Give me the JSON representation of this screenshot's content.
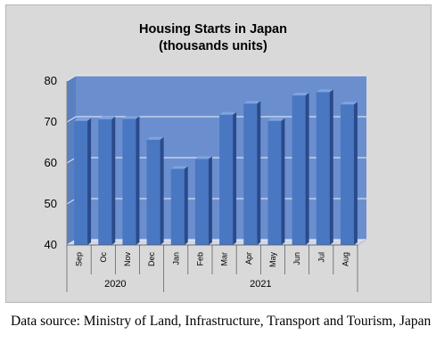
{
  "chart_data": {
    "type": "bar",
    "title": "Housing Starts in Japan",
    "subtitle": "(thousands units)",
    "categories": [
      "Sep",
      "Oc",
      "Nov",
      "Dec",
      "Jan",
      "Feb",
      "Mar",
      "Apr",
      "May",
      "Jun",
      "Jul",
      "Aug"
    ],
    "groups": [
      {
        "label": "2020",
        "count": 4
      },
      {
        "label": "2021",
        "count": 8
      }
    ],
    "values": [
      70.3,
      70.7,
      70.8,
      65.7,
      58.6,
      61.0,
      71.8,
      74.5,
      70.3,
      76.5,
      77.3,
      74.3
    ],
    "ylim": [
      40,
      80
    ],
    "yticks": [
      40,
      50,
      60,
      70,
      80
    ],
    "xlabel": "",
    "ylabel": "",
    "grid": true,
    "legend": "none",
    "colors": {
      "bar_face": "#4a77c2",
      "bar_side": "#2a4a8a",
      "bar_top": "#7ea3df",
      "plot_back": "#6b8fce",
      "plot_floor": "#d0d8ea",
      "background": "#d9d9d9"
    }
  },
  "footer": {
    "source": "Data source: Ministry of Land, Infrastructure, Transport and Tourism, Japan"
  }
}
